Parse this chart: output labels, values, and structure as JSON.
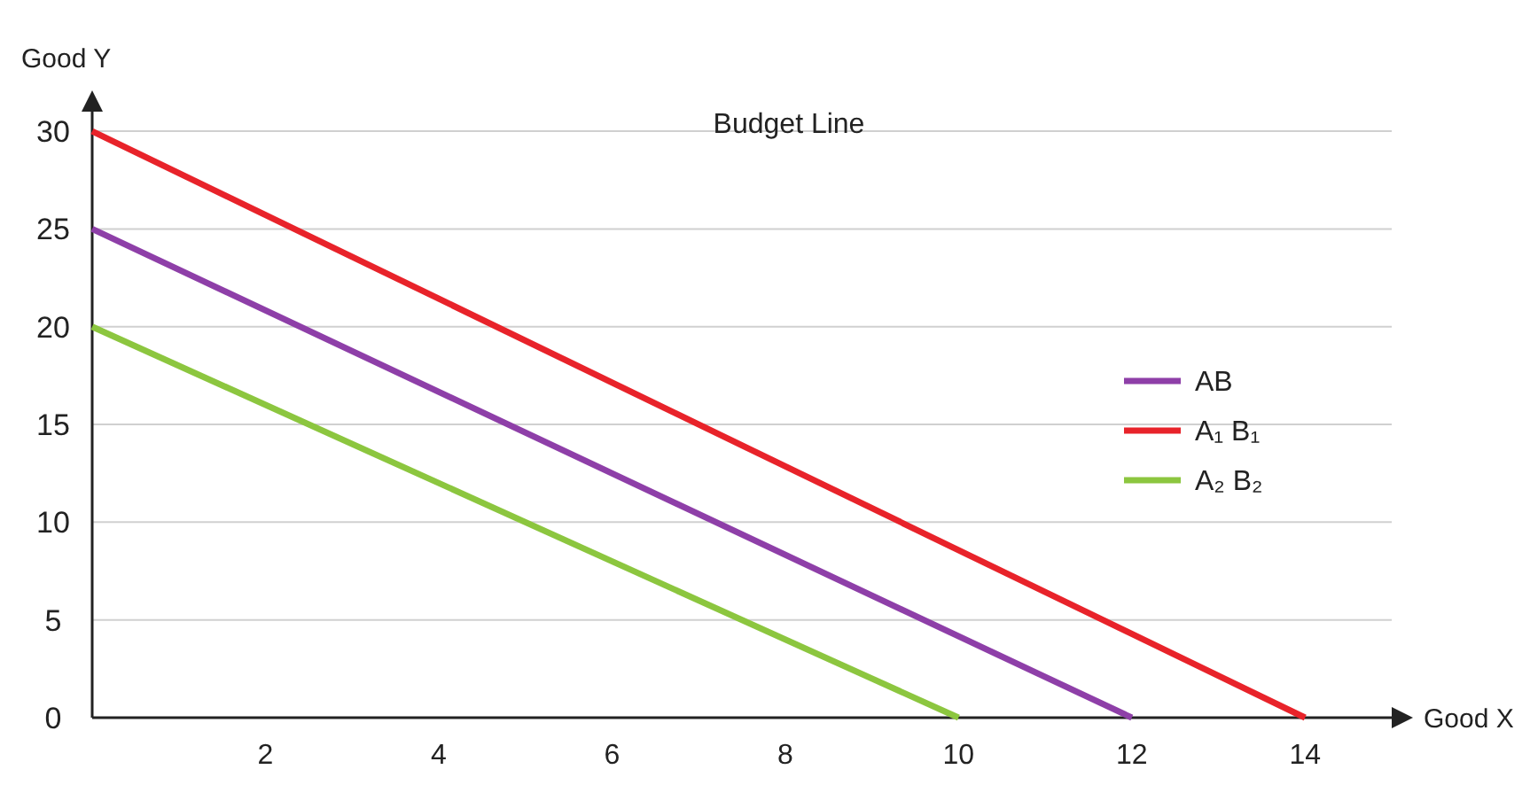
{
  "chart_data": {
    "type": "line",
    "title": "Budget Line",
    "xlabel": "Good X",
    "ylabel": "Good Y",
    "xlim": [
      0,
      15
    ],
    "ylim": [
      0,
      31
    ],
    "xticks": [
      2,
      4,
      6,
      8,
      10,
      12,
      14
    ],
    "yticks": [
      0,
      5,
      10,
      15,
      20,
      25,
      30
    ],
    "grid": "y",
    "legend": "right",
    "marker": "none",
    "line_style": "solid",
    "series": [
      {
        "name": "AB",
        "color": "#8e3fa8",
        "x": [
          0,
          12
        ],
        "values": [
          25,
          0
        ]
      },
      {
        "name": "A₁ B₁",
        "color": "#e8232a",
        "x": [
          0,
          14
        ],
        "values": [
          30,
          0
        ]
      },
      {
        "name": "A₂ B₂",
        "color": "#8cc63f",
        "x": [
          0,
          10
        ],
        "values": [
          20,
          0
        ]
      }
    ]
  }
}
